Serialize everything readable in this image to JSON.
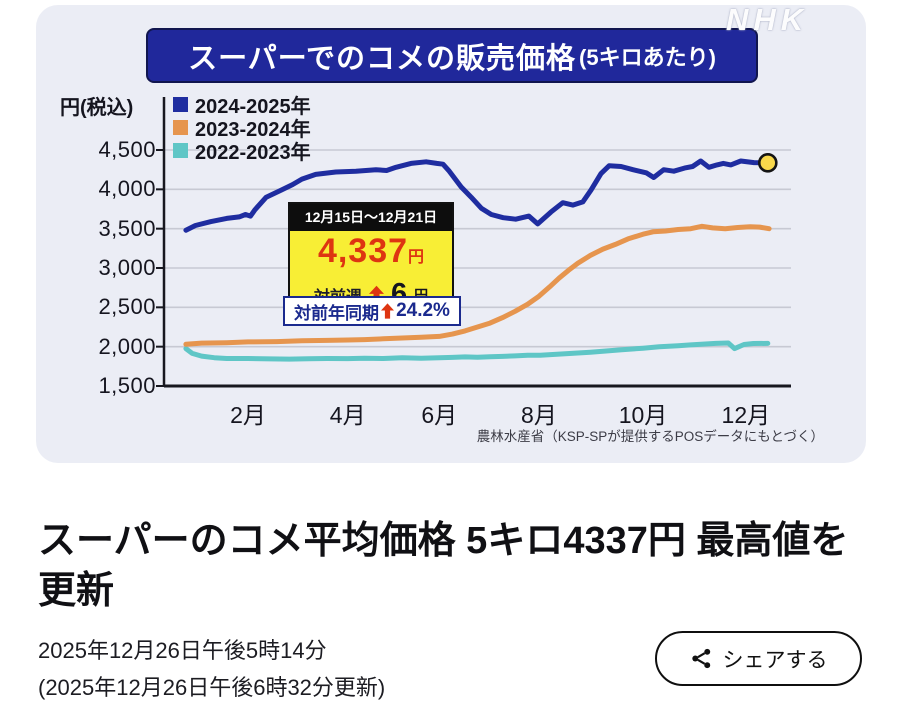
{
  "page": {
    "logo": "NHK",
    "headline": "スーパーのコメ平均価格 5キロ4337円 最高値を更新",
    "published": "2025年12月26日午後5時14分",
    "updated": "(2025年12月26日午後6時32分更新)",
    "share_label": "シェアする"
  },
  "chart": {
    "title": "スーパーでのコメの販売価格",
    "title_suffix": "(5キロあたり)",
    "y_unit_label": "円(税込)",
    "source": "農林水産省（KSP-SPが提供するPOSデータにもとづく）",
    "annotation": {
      "period": "12月15日～12月21日",
      "price": "4,337",
      "price_unit": "円",
      "wow_label": "対前週",
      "wow_value": "6",
      "wow_unit": "円",
      "yoy_label": "対前年同期",
      "yoy_value": "24.2%"
    },
    "colors": {
      "accent_red": "#de3511",
      "navy_text": "#1b2a8e",
      "banner_bg": "#20289b",
      "yellow_bg": "#f8ee35",
      "card_bg": "#ebedf5"
    }
  },
  "chart_data": {
    "type": "line",
    "title": "スーパーでのコメの販売価格(5キロあたり)",
    "xlabel": "",
    "ylabel": "円(税込)",
    "ylim": [
      1500,
      4500
    ],
    "yticks": [
      4500,
      4000,
      3500,
      3000,
      2500,
      2000,
      1500
    ],
    "grid": true,
    "legend_position": "top-left",
    "xticks": [
      {
        "label": "2月",
        "pos": 13.4
      },
      {
        "label": "4月",
        "pos": 29.3
      },
      {
        "label": "6月",
        "pos": 43.9
      },
      {
        "label": "8月",
        "pos": 59.8
      },
      {
        "label": "10月",
        "pos": 76.4
      },
      {
        "label": "12月",
        "pos": 92.8
      }
    ],
    "series": [
      {
        "name": "2022-2023年",
        "color": "#5fc6c6",
        "points": [
          [
            3.5,
            1975
          ],
          [
            4.5,
            1915
          ],
          [
            6,
            1880
          ],
          [
            8,
            1860
          ],
          [
            10,
            1850
          ],
          [
            13.4,
            1850
          ],
          [
            17,
            1845
          ],
          [
            20,
            1842
          ],
          [
            23,
            1846
          ],
          [
            26,
            1850
          ],
          [
            29.3,
            1848
          ],
          [
            32,
            1854
          ],
          [
            35,
            1850
          ],
          [
            38,
            1858
          ],
          [
            41,
            1854
          ],
          [
            43.9,
            1860
          ],
          [
            46,
            1864
          ],
          [
            48,
            1870
          ],
          [
            50,
            1866
          ],
          [
            52,
            1872
          ],
          [
            54,
            1876
          ],
          [
            56,
            1882
          ],
          [
            58,
            1890
          ],
          [
            60,
            1892
          ],
          [
            62,
            1900
          ],
          [
            64,
            1910
          ],
          [
            66,
            1920
          ],
          [
            68,
            1930
          ],
          [
            70,
            1942
          ],
          [
            73,
            1960
          ],
          [
            76.4,
            1980
          ],
          [
            79,
            2000
          ],
          [
            82,
            2012
          ],
          [
            84,
            2022
          ],
          [
            86,
            2032
          ],
          [
            88,
            2042
          ],
          [
            90,
            2046
          ],
          [
            91,
            1975
          ],
          [
            92.5,
            2028
          ],
          [
            94,
            2040
          ],
          [
            96.3,
            2042
          ]
        ]
      },
      {
        "name": "2023-2024年",
        "color": "#e6954e",
        "points": [
          [
            3.5,
            2030
          ],
          [
            6,
            2045
          ],
          [
            10,
            2050
          ],
          [
            13.4,
            2060
          ],
          [
            18,
            2065
          ],
          [
            22,
            2075
          ],
          [
            26,
            2080
          ],
          [
            29.3,
            2085
          ],
          [
            32,
            2090
          ],
          [
            35,
            2100
          ],
          [
            38,
            2110
          ],
          [
            41,
            2120
          ],
          [
            43.9,
            2130
          ],
          [
            46,
            2160
          ],
          [
            48,
            2200
          ],
          [
            50,
            2250
          ],
          [
            52,
            2300
          ],
          [
            54,
            2370
          ],
          [
            56,
            2450
          ],
          [
            58,
            2540
          ],
          [
            59.8,
            2640
          ],
          [
            61.5,
            2760
          ],
          [
            63,
            2870
          ],
          [
            64.5,
            2970
          ],
          [
            66,
            3060
          ],
          [
            68,
            3160
          ],
          [
            70,
            3240
          ],
          [
            72,
            3300
          ],
          [
            74,
            3370
          ],
          [
            76.4,
            3430
          ],
          [
            78,
            3460
          ],
          [
            80,
            3470
          ],
          [
            82,
            3490
          ],
          [
            84,
            3500
          ],
          [
            85.8,
            3530
          ],
          [
            87.5,
            3510
          ],
          [
            89.5,
            3500
          ],
          [
            91.5,
            3515
          ],
          [
            93.5,
            3525
          ],
          [
            95,
            3520
          ],
          [
            96.5,
            3500
          ]
        ]
      },
      {
        "name": "2024-2025年",
        "color": "#1f2da0",
        "points": [
          [
            3.5,
            3480
          ],
          [
            5,
            3540
          ],
          [
            7.5,
            3590
          ],
          [
            10,
            3630
          ],
          [
            12,
            3650
          ],
          [
            13,
            3680
          ],
          [
            13.8,
            3660
          ],
          [
            14.5,
            3740
          ],
          [
            16.3,
            3900
          ],
          [
            18.7,
            3990
          ],
          [
            20.5,
            4060
          ],
          [
            22,
            4130
          ],
          [
            24.2,
            4190
          ],
          [
            27.4,
            4220
          ],
          [
            30.6,
            4230
          ],
          [
            33.8,
            4250
          ],
          [
            35.5,
            4240
          ],
          [
            37,
            4280
          ],
          [
            39.4,
            4330
          ],
          [
            41.8,
            4350
          ],
          [
            43.5,
            4330
          ],
          [
            44.5,
            4320
          ],
          [
            45.5,
            4230
          ],
          [
            47.4,
            4030
          ],
          [
            49,
            3900
          ],
          [
            50.6,
            3760
          ],
          [
            52.2,
            3680
          ],
          [
            54.1,
            3640
          ],
          [
            56.1,
            3620
          ],
          [
            58.2,
            3660
          ],
          [
            59.6,
            3560
          ],
          [
            61.7,
            3710
          ],
          [
            63.6,
            3830
          ],
          [
            65.2,
            3800
          ],
          [
            66.8,
            3840
          ],
          [
            68.1,
            3990
          ],
          [
            69.7,
            4200
          ],
          [
            71,
            4300
          ],
          [
            72.9,
            4290
          ],
          [
            74.8,
            4250
          ],
          [
            76.9,
            4210
          ],
          [
            78.1,
            4150
          ],
          [
            79.7,
            4250
          ],
          [
            81.3,
            4230
          ],
          [
            83,
            4270
          ],
          [
            84.3,
            4290
          ],
          [
            85.6,
            4360
          ],
          [
            86.9,
            4280
          ],
          [
            88.2,
            4310
          ],
          [
            89.2,
            4330
          ],
          [
            90.4,
            4310
          ],
          [
            92,
            4360
          ],
          [
            94.1,
            4340
          ],
          [
            96.3,
            4337
          ]
        ]
      }
    ],
    "legend_order": [
      "2024-2025年",
      "2023-2024年",
      "2022-2023年"
    ],
    "endpoint_marker": {
      "series": "2024-2025年",
      "x": 96.3,
      "y": 4337,
      "fill": "#f8d84b",
      "stroke": "#141414"
    }
  }
}
